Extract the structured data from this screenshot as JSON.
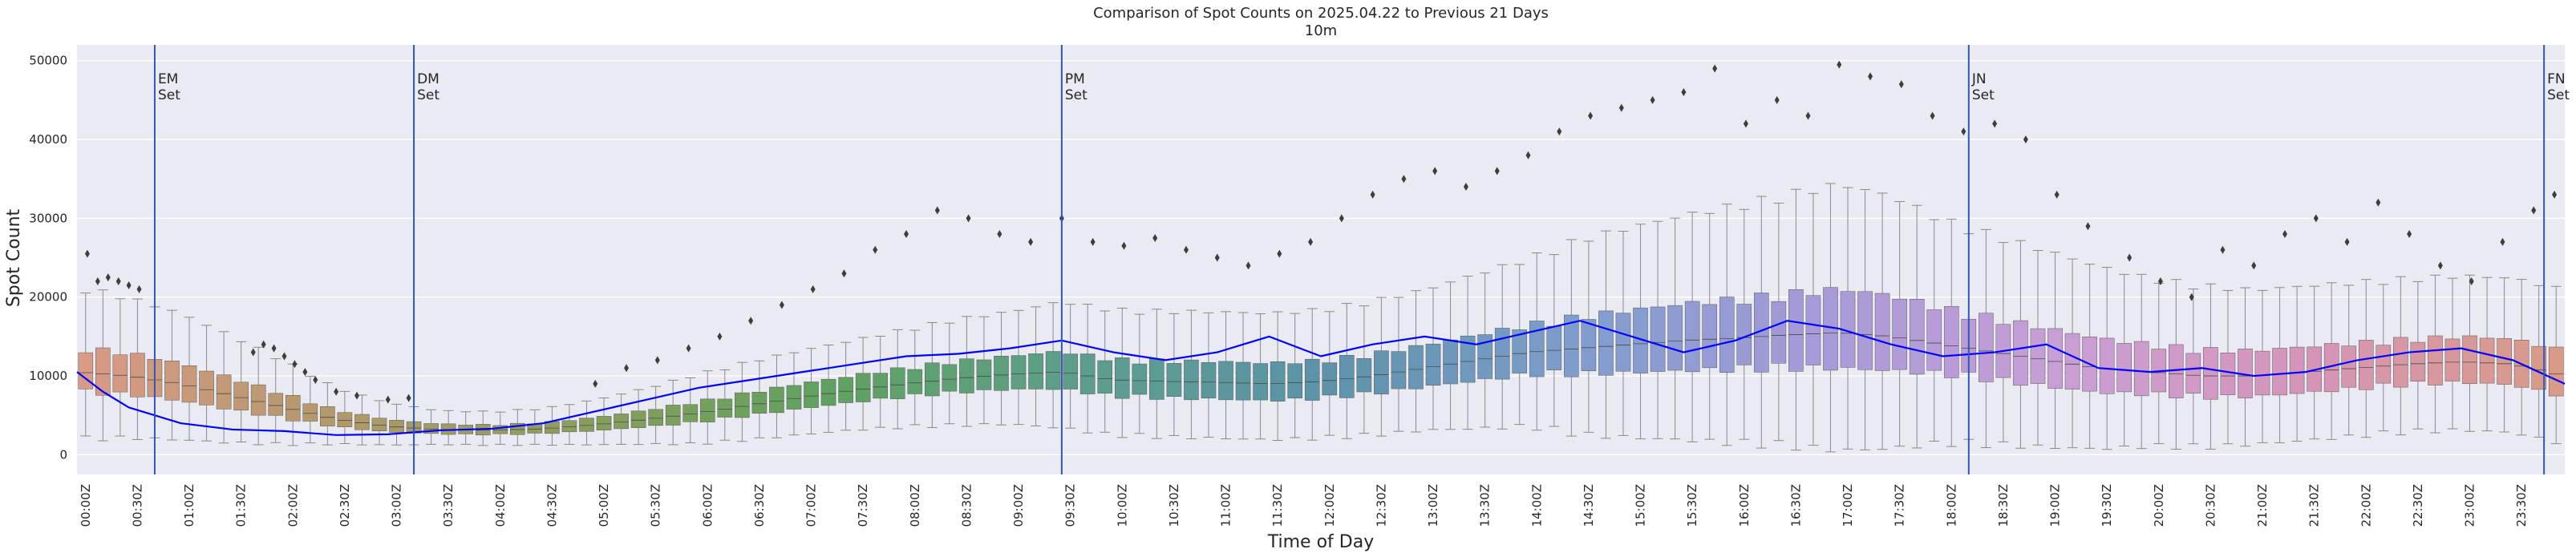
{
  "chart_data": {
    "type": "box",
    "title": "Comparison of Spot Counts on 2025.04.22 to Previous 21 Days",
    "subtitle": "10m",
    "xlabel": "Time of Day",
    "ylabel": "Spot Count",
    "ylim": [
      -2500,
      52000
    ],
    "yticks": [
      0,
      10000,
      20000,
      30000,
      40000,
      50000
    ],
    "ytick_labels": [
      "0",
      "10000",
      "20000",
      "30000",
      "40000",
      "50000"
    ],
    "xtick_labels": [
      "00:00Z",
      "00:30Z",
      "01:00Z",
      "01:30Z",
      "02:00Z",
      "02:30Z",
      "03:00Z",
      "03:30Z",
      "04:00Z",
      "04:30Z",
      "05:00Z",
      "05:30Z",
      "06:00Z",
      "06:30Z",
      "07:00Z",
      "07:30Z",
      "08:00Z",
      "08:30Z",
      "09:00Z",
      "09:30Z",
      "10:00Z",
      "10:30Z",
      "11:00Z",
      "11:30Z",
      "12:00Z",
      "12:30Z",
      "13:00Z",
      "13:30Z",
      "14:00Z",
      "14:30Z",
      "15:00Z",
      "15:30Z",
      "16:00Z",
      "16:30Z",
      "17:00Z",
      "17:30Z",
      "18:00Z",
      "18:30Z",
      "19:00Z",
      "19:30Z",
      "20:00Z",
      "20:30Z",
      "21:00Z",
      "21:30Z",
      "22:00Z",
      "22:30Z",
      "23:00Z",
      "23:30Z"
    ],
    "grid": true,
    "bins_per_day": 144,
    "bin_minutes": 10,
    "median_profile": {
      "hours": [
        0,
        0.5,
        1,
        1.5,
        2,
        2.5,
        3,
        3.5,
        4,
        4.5,
        5,
        5.5,
        6,
        6.5,
        7,
        7.5,
        8,
        8.5,
        9,
        9.5,
        10,
        10.5,
        11,
        11.5,
        12,
        12.5,
        13,
        13.5,
        14,
        14.5,
        15,
        15.5,
        16,
        16.5,
        17,
        17.5,
        18,
        18.5,
        19,
        19.5,
        20,
        20.5,
        21,
        21.5,
        22,
        22.5,
        23,
        23.5,
        24
      ],
      "median": [
        10500,
        10000,
        9000,
        7500,
        6000,
        4500,
        3600,
        3200,
        3100,
        3300,
        3800,
        4500,
        5300,
        6300,
        7300,
        8200,
        9000,
        9700,
        10200,
        10500,
        9500,
        9300,
        9200,
        9000,
        9300,
        10000,
        11000,
        12000,
        13000,
        13500,
        14000,
        14500,
        14800,
        15200,
        15500,
        15000,
        14000,
        13000,
        12000,
        11000,
        10500,
        10000,
        10000,
        10500,
        11000,
        11500,
        11800,
        11500,
        10000
      ],
      "iqr": [
        5500,
        5000,
        4500,
        3800,
        3000,
        2000,
        1500,
        1200,
        1200,
        1300,
        1600,
        2000,
        2500,
        2800,
        3000,
        3200,
        3500,
        3800,
        4000,
        4500,
        4500,
        4500,
        4500,
        4500,
        4600,
        4800,
        5000,
        5500,
        6000,
        7000,
        7500,
        8000,
        8500,
        9000,
        9500,
        9000,
        8000,
        7500,
        7000,
        6500,
        6000,
        5800,
        5500,
        5500,
        5500,
        5500,
        5500,
        5500,
        5500
      ]
    },
    "series": [
      {
        "name": "2025.04.22",
        "color": "#0000ff",
        "x_hours": [
          0,
          0.25,
          0.5,
          1,
          1.5,
          2,
          2.5,
          3,
          3.5,
          4,
          4.5,
          5,
          5.5,
          6,
          6.5,
          7,
          7.5,
          8,
          8.5,
          9,
          9.5,
          10,
          10.5,
          11,
          11.5,
          12,
          12.5,
          13,
          13.5,
          14,
          14.5,
          15,
          15.5,
          16,
          16.5,
          17,
          17.5,
          18,
          18.5,
          19,
          19.5,
          20,
          20.5,
          21,
          21.5,
          22,
          22.5,
          23,
          23.5,
          24
        ],
        "values": [
          10500,
          8000,
          6000,
          4000,
          3200,
          3000,
          2500,
          2600,
          3100,
          3300,
          4000,
          5500,
          7000,
          8500,
          9500,
          10500,
          11500,
          12500,
          12800,
          13500,
          14500,
          13000,
          12000,
          13000,
          15000,
          12500,
          14000,
          15000,
          14000,
          15500,
          17000,
          15000,
          13000,
          14500,
          17000,
          16000,
          14000,
          12500,
          13000,
          14000,
          11000,
          10500,
          11000,
          10000,
          10500,
          12000,
          13000,
          13500,
          12000,
          9000
        ]
      }
    ],
    "outlier_clusters": [
      {
        "x_hours": [
          0.1,
          0.2,
          0.3,
          0.4,
          0.5,
          0.6
        ],
        "values": [
          25500,
          22000,
          22500,
          22000,
          21500,
          21000
        ]
      },
      {
        "x_hours": [
          1.7,
          1.8,
          1.9,
          2.0,
          2.1,
          2.2,
          2.3,
          2.5,
          2.7,
          3.0,
          3.2
        ],
        "values": [
          13000,
          14000,
          13500,
          12500,
          11500,
          10500,
          9500,
          8000,
          7500,
          7000,
          7200
        ]
      },
      {
        "x_hours": [
          5.0,
          5.3,
          5.6,
          5.9,
          6.2,
          6.5,
          6.8,
          7.1,
          7.4,
          7.7,
          8.0,
          8.3,
          8.6,
          8.9,
          9.2,
          9.5
        ],
        "values": [
          9000,
          11000,
          12000,
          13500,
          15000,
          17000,
          19000,
          21000,
          23000,
          26000,
          28000,
          31000,
          30000,
          28000,
          27000,
          30000
        ]
      },
      {
        "x_hours": [
          9.8,
          10.1,
          10.4,
          10.7,
          11.0,
          11.3,
          11.6,
          11.9,
          12.2,
          12.5,
          12.8,
          13.1,
          13.4,
          13.7,
          14.0,
          14.3
        ],
        "values": [
          27000,
          26500,
          27500,
          26000,
          25000,
          24000,
          25500,
          27000,
          30000,
          33000,
          35000,
          36000,
          34000,
          36000,
          38000,
          41000
        ]
      },
      {
        "x_hours": [
          14.6,
          14.9,
          15.2,
          15.5,
          15.8,
          16.1,
          16.4,
          16.7,
          17.0,
          17.3,
          17.6,
          17.9,
          18.2,
          18.5,
          18.8,
          19.1,
          19.4
        ],
        "values": [
          43000,
          44000,
          45000,
          46000,
          49000,
          42000,
          45000,
          43000,
          49500,
          48000,
          47000,
          43000,
          41000,
          42000,
          40000,
          33000,
          29000
        ]
      },
      {
        "x_hours": [
          19.8,
          20.1,
          20.4,
          20.7,
          21.0,
          21.3,
          21.6,
          21.9,
          22.2,
          22.5,
          22.8,
          23.1,
          23.4,
          23.7,
          23.9
        ],
        "values": [
          25000,
          22000,
          20000,
          26000,
          24000,
          28000,
          30000,
          27000,
          32000,
          28000,
          24000,
          22000,
          27000,
          31000,
          33000
        ]
      }
    ],
    "annotations": [
      {
        "x_hour": 0.75,
        "line1": "EM",
        "line2": "Set"
      },
      {
        "x_hour": 3.25,
        "line1": "DM",
        "line2": "Set"
      },
      {
        "x_hour": 9.5,
        "line1": "PM",
        "line2": "Set"
      },
      {
        "x_hour": 18.25,
        "line1": "JN",
        "line2": "Set"
      },
      {
        "x_hour": 23.8,
        "line1": "FN",
        "line2": "Set"
      }
    ],
    "colors": {
      "background": "#eaeaf2",
      "grid": "#ffffff",
      "median_line": "#0000ff",
      "annotation_line": "#3355bb",
      "outlier": "#3d3d3d",
      "whisker": "#8a8a8a",
      "box_gradient": [
        "#d99a86",
        "#b2996a",
        "#8a9e5c",
        "#5fa25f",
        "#5c9e8a",
        "#5b93a8",
        "#7d9dcc",
        "#a69ad8",
        "#c99ed6",
        "#d695b8",
        "#d99a86"
      ]
    }
  }
}
